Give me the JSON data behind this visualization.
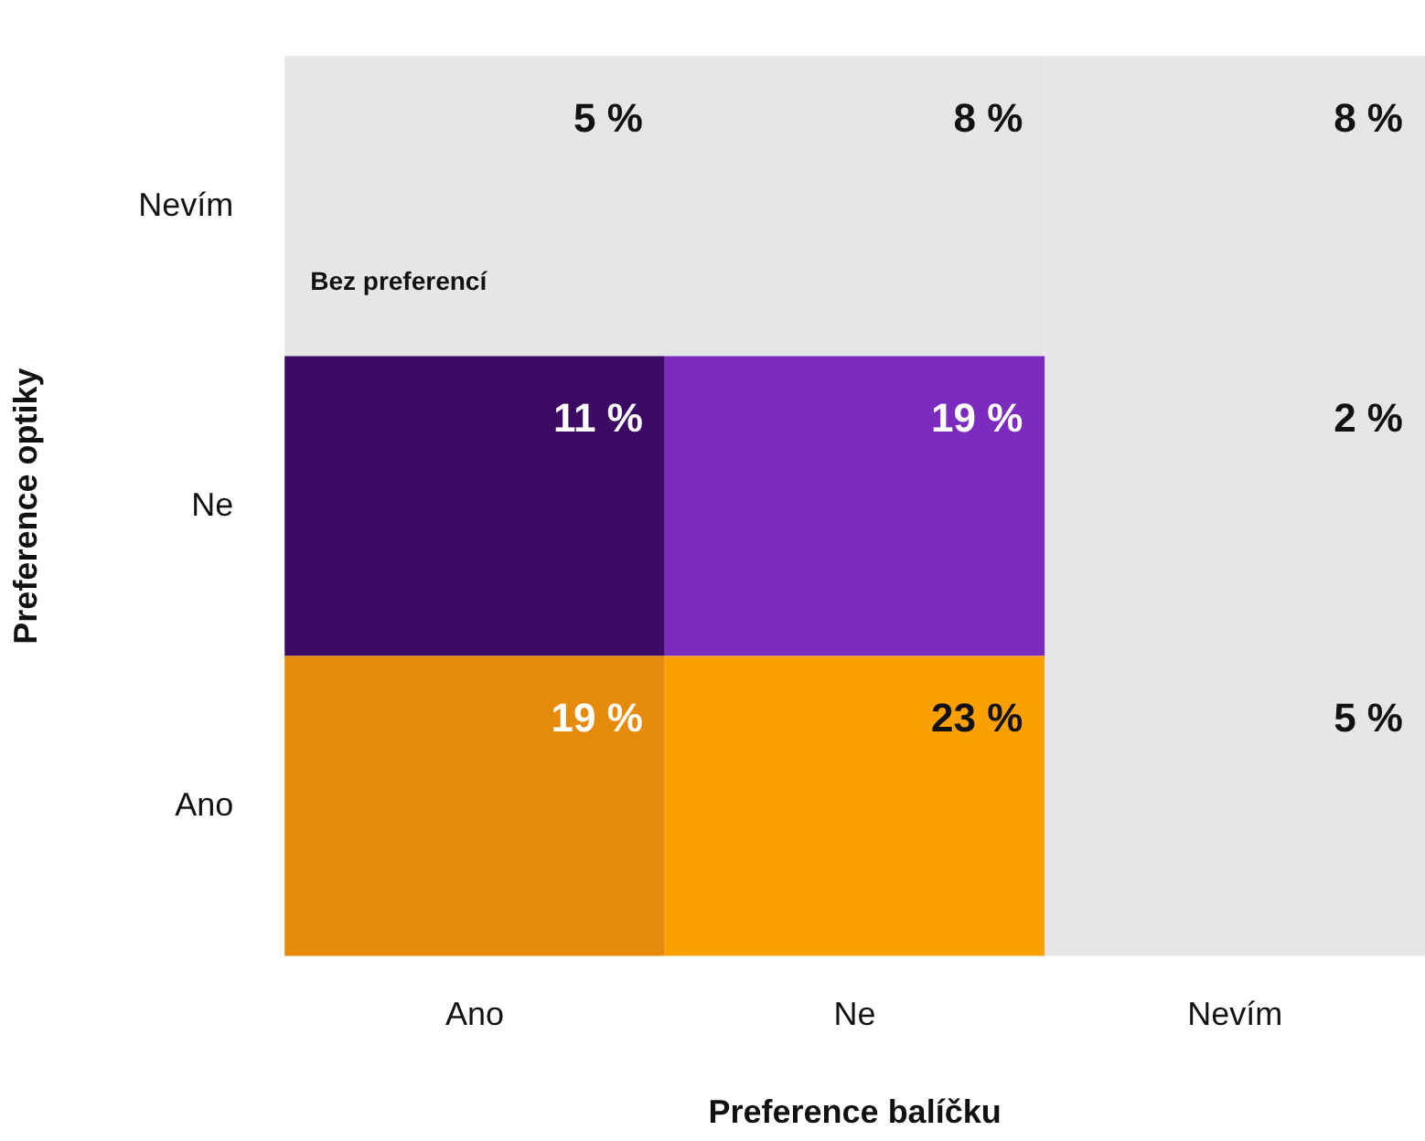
{
  "chart_data": {
    "type": "heatmap",
    "xlabel": "Preference balíčku",
    "ylabel": "Preference optiky",
    "categories": [
      "Ano",
      "Ne",
      "Nevím"
    ],
    "y_categories": [
      "Nevím",
      "Ne",
      "Ano"
    ],
    "cells": [
      [
        5,
        8,
        8
      ],
      [
        11,
        19,
        2
      ],
      [
        19,
        23,
        5
      ]
    ],
    "cell_labels": [
      [
        "5 %",
        "8 %",
        "8 %"
      ],
      [
        "11 %",
        "19 %",
        "2 %"
      ],
      [
        "19 %",
        "23 %",
        "5 %"
      ]
    ],
    "colors": [
      [
        "#e6e6e6",
        "#e6e6e6",
        "#e6e6e6"
      ],
      [
        "#3d0a63",
        "#7b2cbf",
        "#e6e6e6"
      ],
      [
        "#e68a0c",
        "#fca000",
        "#e6e6e6"
      ]
    ],
    "annotations": [
      "Bez preferencí"
    ]
  }
}
